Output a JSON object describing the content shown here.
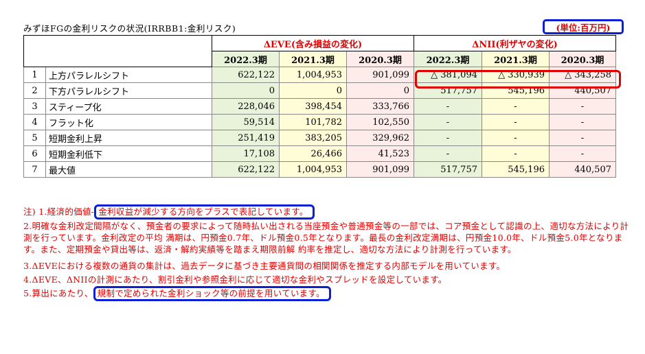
{
  "title": "みずほFGの金利リスクの状況(IRRBB1:金利リスク)",
  "unit": "(単位:百万円)",
  "groups": {
    "eve": "ΔEVE(含み損益の変化)",
    "nii": "ΔNII(利ザヤの変化)"
  },
  "periods": [
    "2022.3期",
    "2021.3期",
    "2020.3期",
    "2022.3期",
    "2021.3期",
    "2020.3期"
  ],
  "rows": [
    {
      "no": "1",
      "label": "上方パラレルシフト",
      "vals": [
        "622,122",
        "1,004,953",
        "901,099",
        "△ 381,094",
        "△ 330,939",
        "△ 343,258"
      ]
    },
    {
      "no": "2",
      "label": "下方パラレルシフト",
      "vals": [
        "0",
        "0",
        "0",
        "517,757",
        "545,196",
        "440,507"
      ]
    },
    {
      "no": "3",
      "label": "スティープ化",
      "vals": [
        "228,046",
        "398,454",
        "333,766",
        "-",
        "-",
        "-"
      ]
    },
    {
      "no": "4",
      "label": "フラット化",
      "vals": [
        "59,514",
        "101,782",
        "102,550",
        "-",
        "-",
        "-"
      ]
    },
    {
      "no": "5",
      "label": "短期金利上昇",
      "vals": [
        "251,419",
        "383,205",
        "329,962",
        "-",
        "-",
        "-"
      ]
    },
    {
      "no": "6",
      "label": "短期金利低下",
      "vals": [
        "17,108",
        "26,466",
        "41,523",
        "-",
        "-",
        "-"
      ]
    },
    {
      "no": "7",
      "label": "最大値",
      "vals": [
        "622,122",
        "1,004,953",
        "901,099",
        "517,757",
        "545,196",
        "440,507"
      ]
    }
  ],
  "notes": {
    "n1_pre": "注) 1.経済的価値-",
    "n1_hl": "金利収益が減少する方向をプラスで表記しています。",
    "n2": "2.明確な金利改定間隔がなく、預金者の要求によって随時払い出される当座預金や普通預金等の一部では、コア預金として認識の上、適切な方法により計測を行っています。金利改定の平均 満期は、円預金0.7年、ドル預金0.5年となります。最長の金利改定満期は、円預金10.0年、ドル預金5.0年となります。また、定期預金や貸出等は、返済・解約実績等を踏まえ期限前解 約率を推定し、適切な方法により計測を行っています。",
    "n3": "3.ΔEVEにおける複数の通貨の集計は、過去データに基づき主要通貨間の相関関係を推定する内部モデルを用いています。",
    "n4": "4.ΔEVE、ΔNIIの計測にあたり、割引金利や参照金利に応じて適切な金利やスプレッドを設定しています。",
    "n5_pre": "5.算出にあたり、",
    "n5_hl": "規制で定められた金利ショック等の前提を用いています。"
  },
  "colors": {
    "red": "#e00000",
    "blue_box": "#0a1fd6",
    "col_2022": "#e9f3da",
    "col_2021": "#fffcd8",
    "col_2020": "#fdecea"
  }
}
